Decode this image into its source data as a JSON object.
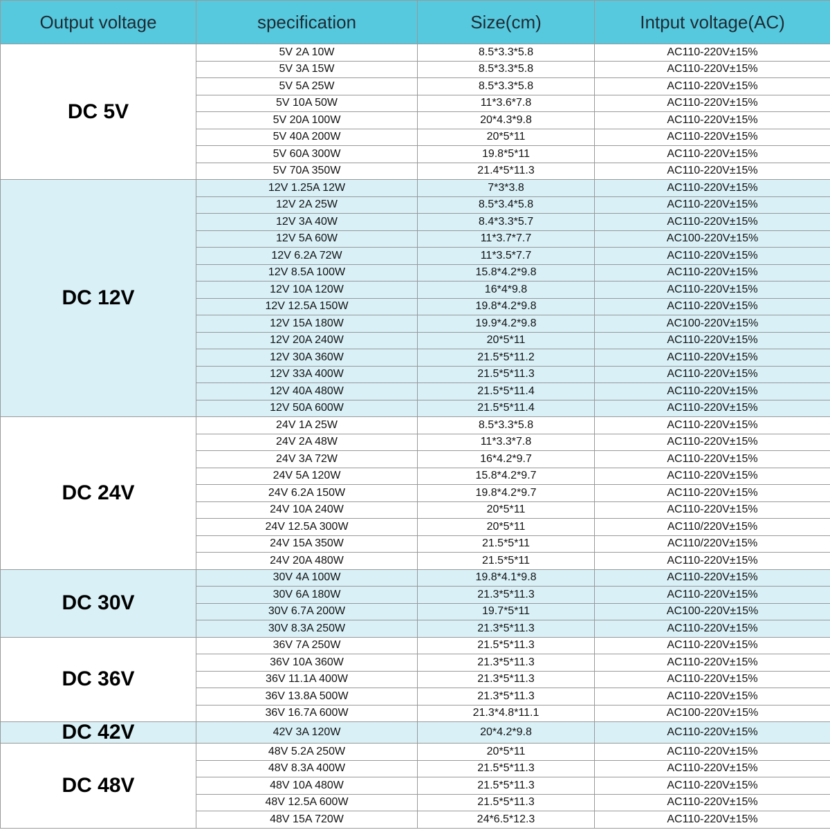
{
  "colors": {
    "header_bg": "#56c9de",
    "shaded_bg": "#d8f0f6",
    "border": "#999999"
  },
  "header": {
    "columns": [
      "Output voltage",
      "specification",
      "Size(cm)",
      "Intput voltage(AC)"
    ]
  },
  "groups": [
    {
      "label": "DC 5V",
      "shaded": false,
      "rows": [
        {
          "spec": "5V 2A 10W",
          "size": "8.5*3.3*5.8",
          "input": "AC110-220V±15%"
        },
        {
          "spec": "5V 3A 15W",
          "size": "8.5*3.3*5.8",
          "input": "AC110-220V±15%"
        },
        {
          "spec": "5V 5A 25W",
          "size": "8.5*3.3*5.8",
          "input": "AC110-220V±15%"
        },
        {
          "spec": "5V 10A 50W",
          "size": "11*3.6*7.8",
          "input": "AC110-220V±15%"
        },
        {
          "spec": "5V 20A 100W",
          "size": "20*4.3*9.8",
          "input": "AC110-220V±15%"
        },
        {
          "spec": "5V 40A 200W",
          "size": "20*5*11",
          "input": "AC110-220V±15%"
        },
        {
          "spec": "5V 60A 300W",
          "size": "19.8*5*11",
          "input": "AC110-220V±15%"
        },
        {
          "spec": "5V 70A 350W",
          "size": "21.4*5*11.3",
          "input": "AC110-220V±15%"
        }
      ]
    },
    {
      "label": "DC 12V",
      "shaded": true,
      "rows": [
        {
          "spec": "12V 1.25A 12W",
          "size": "7*3*3.8",
          "input": "AC110-220V±15%"
        },
        {
          "spec": "12V 2A 25W",
          "size": "8.5*3.4*5.8",
          "input": "AC110-220V±15%"
        },
        {
          "spec": "12V 3A 40W",
          "size": "8.4*3.3*5.7",
          "input": "AC110-220V±15%"
        },
        {
          "spec": "12V 5A 60W",
          "size": "11*3.7*7.7",
          "input": "AC100-220V±15%"
        },
        {
          "spec": "12V 6.2A 72W",
          "size": "11*3.5*7.7",
          "input": "AC110-220V±15%"
        },
        {
          "spec": "12V 8.5A 100W",
          "size": "15.8*4.2*9.8",
          "input": "AC110-220V±15%"
        },
        {
          "spec": "12V 10A 120W",
          "size": "16*4*9.8",
          "input": "AC110-220V±15%"
        },
        {
          "spec": "12V 12.5A 150W",
          "size": "19.8*4.2*9.8",
          "input": "AC110-220V±15%"
        },
        {
          "spec": "12V 15A 180W",
          "size": "19.9*4.2*9.8",
          "input": "AC100-220V±15%"
        },
        {
          "spec": "12V 20A 240W",
          "size": "20*5*11",
          "input": "AC110-220V±15%"
        },
        {
          "spec": "12V 30A 360W",
          "size": "21.5*5*11.2",
          "input": "AC110-220V±15%"
        },
        {
          "spec": "12V 33A 400W",
          "size": "21.5*5*11.3",
          "input": "AC110-220V±15%"
        },
        {
          "spec": "12V 40A 480W",
          "size": "21.5*5*11.4",
          "input": "AC110-220V±15%"
        },
        {
          "spec": "12V 50A 600W",
          "size": "21.5*5*11.4",
          "input": "AC110-220V±15%"
        }
      ]
    },
    {
      "label": "DC 24V",
      "shaded": false,
      "rows": [
        {
          "spec": "24V 1A 25W",
          "size": "8.5*3.3*5.8",
          "input": "AC110-220V±15%"
        },
        {
          "spec": "24V 2A 48W",
          "size": "11*3.3*7.8",
          "input": "AC110-220V±15%"
        },
        {
          "spec": "24V 3A 72W",
          "size": "16*4.2*9.7",
          "input": "AC110-220V±15%"
        },
        {
          "spec": "24V 5A 120W",
          "size": "15.8*4.2*9.7",
          "input": "AC110-220V±15%"
        },
        {
          "spec": "24V 6.2A 150W",
          "size": "19.8*4.2*9.7",
          "input": "AC110-220V±15%"
        },
        {
          "spec": "24V 10A 240W",
          "size": "20*5*11",
          "input": "AC110-220V±15%"
        },
        {
          "spec": "24V 12.5A 300W",
          "size": "20*5*11",
          "input": "AC110/220V±15%"
        },
        {
          "spec": "24V 15A 350W",
          "size": "21.5*5*11",
          "input": "AC110/220V±15%"
        },
        {
          "spec": "24V 20A 480W",
          "size": "21.5*5*11",
          "input": "AC110-220V±15%"
        }
      ]
    },
    {
      "label": "DC 30V",
      "shaded": true,
      "rows": [
        {
          "spec": "30V 4A 100W",
          "size": "19.8*4.1*9.8",
          "input": "AC110-220V±15%"
        },
        {
          "spec": "30V 6A 180W",
          "size": "21.3*5*11.3",
          "input": "AC110-220V±15%"
        },
        {
          "spec": "30V 6.7A 200W",
          "size": "19.7*5*11",
          "input": "AC100-220V±15%"
        },
        {
          "spec": "30V 8.3A 250W",
          "size": "21.3*5*11.3",
          "input": "AC110-220V±15%"
        }
      ]
    },
    {
      "label": "DC 36V",
      "shaded": false,
      "rows": [
        {
          "spec": "36V 7A 250W",
          "size": "21.5*5*11.3",
          "input": "AC110-220V±15%"
        },
        {
          "spec": "36V 10A 360W",
          "size": "21.3*5*11.3",
          "input": "AC110-220V±15%"
        },
        {
          "spec": "36V 11.1A 400W",
          "size": "21.3*5*11.3",
          "input": "AC110-220V±15%"
        },
        {
          "spec": "36V 13.8A 500W",
          "size": "21.3*5*11.3",
          "input": "AC110-220V±15%"
        },
        {
          "spec": "36V 16.7A 600W",
          "size": "21.3*4.8*11.1",
          "input": "AC100-220V±15%"
        }
      ]
    },
    {
      "label": "DC 42V",
      "shaded": true,
      "rows": [
        {
          "spec": "42V 3A 120W",
          "size": "20*4.2*9.8",
          "input": "AC110-220V±15%"
        }
      ]
    },
    {
      "label": "DC 48V",
      "shaded": false,
      "rows": [
        {
          "spec": "48V 5.2A 250W",
          "size": "20*5*11",
          "input": "AC110-220V±15%"
        },
        {
          "spec": "48V 8.3A 400W",
          "size": "21.5*5*11.3",
          "input": "AC110-220V±15%"
        },
        {
          "spec": "48V 10A 480W",
          "size": "21.5*5*11.3",
          "input": "AC110-220V±15%"
        },
        {
          "spec": "48V 12.5A 600W",
          "size": "21.5*5*11.3",
          "input": "AC110-220V±15%"
        },
        {
          "spec": "48V 15A 720W",
          "size": "24*6.5*12.3",
          "input": "AC110-220V±15%"
        }
      ]
    }
  ]
}
